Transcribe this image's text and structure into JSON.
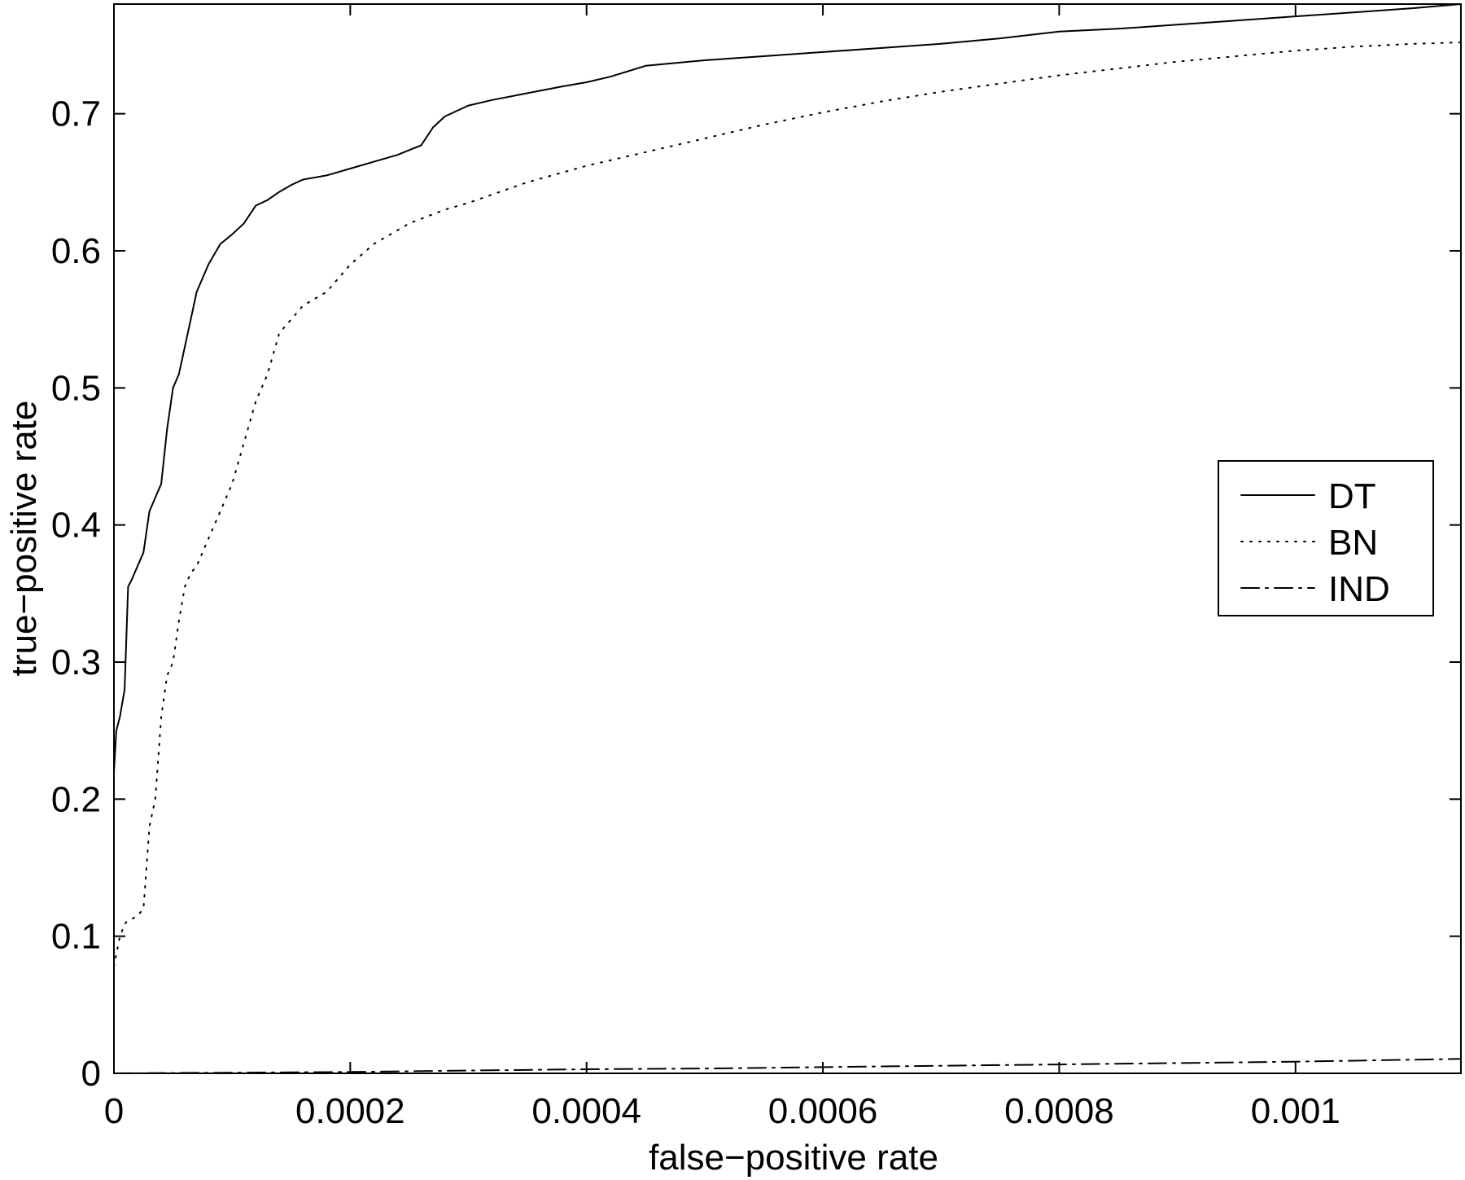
{
  "chart_data": {
    "type": "line",
    "xlabel": "false−positive rate",
    "ylabel": "true−positive rate",
    "xlim": [
      0,
      0.00114
    ],
    "ylim": [
      0,
      0.78
    ],
    "x_ticks": [
      0,
      0.0002,
      0.0004,
      0.0006,
      0.0008,
      0.001
    ],
    "x_tick_labels": [
      "0",
      "0.0002",
      "0.0004",
      "0.0006",
      "0.0008",
      "0.001"
    ],
    "y_ticks": [
      0,
      0.1,
      0.2,
      0.3,
      0.4,
      0.5,
      0.6,
      0.7
    ],
    "y_tick_labels": [
      "0",
      "0.1",
      "0.2",
      "0.3",
      "0.4",
      "0.5",
      "0.6",
      "0.7"
    ],
    "grid": false,
    "legend_position": "right",
    "series": [
      {
        "name": "DT",
        "style": "solid",
        "x": [
          0,
          2e-06,
          5e-06,
          9e-06,
          1.2e-05,
          1.5e-05,
          2e-05,
          2.5e-05,
          3e-05,
          3.5e-05,
          4e-05,
          4.5e-05,
          5e-05,
          5.5e-05,
          6e-05,
          6.5e-05,
          7e-05,
          8e-05,
          9e-05,
          0.0001,
          0.00011,
          0.00012,
          0.00013,
          0.00014,
          0.00015,
          0.00016,
          0.00018,
          0.0002,
          0.00022,
          0.00024,
          0.00026,
          0.00027,
          0.00028,
          0.0003,
          0.00032,
          0.00035,
          0.00038,
          0.0004,
          0.00042,
          0.00045,
          0.0005,
          0.00055,
          0.0006,
          0.00065,
          0.0007,
          0.00075,
          0.0008,
          0.00085,
          0.0009,
          0.00095,
          0.001,
          0.00105,
          0.0011,
          0.00114
        ],
        "y": [
          0.22,
          0.25,
          0.26,
          0.28,
          0.355,
          0.36,
          0.37,
          0.38,
          0.41,
          0.42,
          0.43,
          0.47,
          0.5,
          0.51,
          0.53,
          0.55,
          0.57,
          0.59,
          0.605,
          0.612,
          0.62,
          0.633,
          0.637,
          0.643,
          0.648,
          0.652,
          0.655,
          0.66,
          0.665,
          0.67,
          0.677,
          0.69,
          0.698,
          0.706,
          0.71,
          0.715,
          0.72,
          0.723,
          0.727,
          0.735,
          0.739,
          0.742,
          0.745,
          0.748,
          0.751,
          0.755,
          0.76,
          0.762,
          0.765,
          0.768,
          0.771,
          0.774,
          0.777,
          0.78
        ]
      },
      {
        "name": "BN",
        "style": "dotted",
        "x": [
          0,
          5e-06,
          1e-05,
          2e-05,
          2.5e-05,
          3e-05,
          3.5e-05,
          4e-05,
          4.5e-05,
          5e-05,
          5.5e-05,
          6e-05,
          6.5e-05,
          7e-05,
          8e-05,
          9e-05,
          0.0001,
          0.00011,
          0.00012,
          0.00013,
          0.00014,
          0.00015,
          0.00016,
          0.00018,
          0.0002,
          0.00022,
          0.00025,
          0.00028,
          0.0003,
          0.00035,
          0.0004,
          0.00045,
          0.0005,
          0.00055,
          0.0006,
          0.00065,
          0.0007,
          0.00075,
          0.0008,
          0.00085,
          0.0009,
          0.00095,
          0.001,
          0.00105,
          0.0011,
          0.00114
        ],
        "y": [
          0.078,
          0.1,
          0.11,
          0.115,
          0.12,
          0.18,
          0.2,
          0.26,
          0.29,
          0.3,
          0.33,
          0.355,
          0.365,
          0.37,
          0.39,
          0.41,
          0.43,
          0.46,
          0.49,
          0.51,
          0.54,
          0.55,
          0.56,
          0.57,
          0.59,
          0.605,
          0.62,
          0.63,
          0.635,
          0.65,
          0.662,
          0.672,
          0.682,
          0.692,
          0.701,
          0.709,
          0.716,
          0.722,
          0.728,
          0.733,
          0.738,
          0.742,
          0.746,
          0.749,
          0.751,
          0.752
        ]
      },
      {
        "name": "IND",
        "style": "dashdot",
        "x": [
          0,
          0.0001,
          0.0002,
          0.0003,
          0.0004,
          0.0005,
          0.0006,
          0.0007,
          0.0008,
          0.0009,
          0.001,
          0.00114
        ],
        "y": [
          0,
          0.0005,
          0.001,
          0.002,
          0.003,
          0.0035,
          0.0045,
          0.0055,
          0.0065,
          0.0075,
          0.0085,
          0.0105
        ]
      }
    ]
  }
}
